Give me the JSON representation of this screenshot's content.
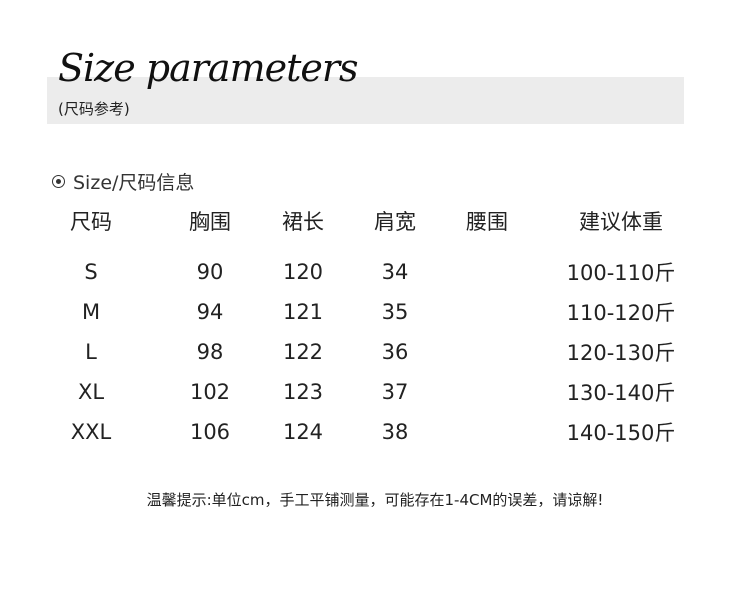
{
  "header": {
    "title": "Size parameters",
    "subtitle": "(尺码参考)"
  },
  "section": {
    "label": "Size/尺码信息",
    "icon": "radio-circle-icon"
  },
  "table": {
    "headers": [
      "尺码",
      "胸围",
      "裙长",
      "肩宽",
      "腰围",
      "建议体重"
    ],
    "rows": [
      [
        "S",
        "90",
        "120",
        "34",
        "",
        "100-110斤"
      ],
      [
        "M",
        "94",
        "121",
        "35",
        "",
        "110-120斤"
      ],
      [
        "L",
        "98",
        "122",
        "36",
        "",
        "120-130斤"
      ],
      [
        "XL",
        "102",
        "123",
        "37",
        "",
        "130-140斤"
      ],
      [
        "XXL",
        "106",
        "124",
        "38",
        "",
        "140-150斤"
      ]
    ]
  },
  "note": "温馨提示:单位cm，手工平铺测量，可能存在1-4CM的误差，请谅解!"
}
